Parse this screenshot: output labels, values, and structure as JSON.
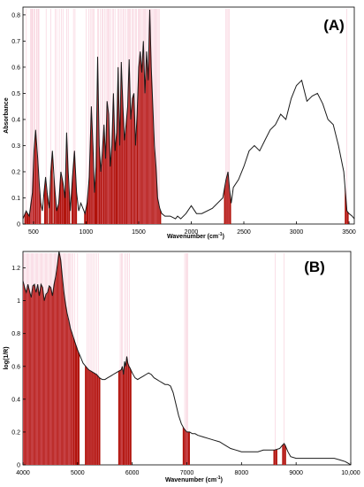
{
  "chart_data": [
    {
      "type": "line",
      "panel_label": "(A)",
      "xlabel": "Wavenumber (cm",
      "xlabel_sup": "-1",
      "xlabel_close": ")",
      "ylabel": "Absorbance",
      "xlim": [
        400,
        3550
      ],
      "ylim": [
        0,
        0.83
      ],
      "xticks": [
        500,
        1000,
        1500,
        2000,
        2500,
        3000,
        3500
      ],
      "xtick_labels": [
        "500",
        "1000",
        "1500",
        "2000",
        "2500",
        "3000",
        "3500"
      ],
      "yticks": [
        0,
        0.1,
        0.2,
        0.3,
        0.4,
        0.5,
        0.6,
        0.7,
        0.8
      ],
      "ytick_labels": [
        "0",
        "0.1",
        "0.2",
        "0.3",
        "0.4",
        "0.5",
        "0.6",
        "0.7",
        "0.8"
      ],
      "spectrum": {
        "x": [
          400,
          430,
          460,
          490,
          505,
          520,
          540,
          555,
          570,
          585,
          600,
          615,
          630,
          650,
          665,
          680,
          700,
          720,
          740,
          760,
          780,
          800,
          815,
          830,
          850,
          870,
          890,
          910,
          930,
          950,
          970,
          990,
          1010,
          1030,
          1050,
          1065,
          1080,
          1095,
          1110,
          1125,
          1140,
          1155,
          1170,
          1185,
          1200,
          1215,
          1230,
          1245,
          1260,
          1275,
          1290,
          1305,
          1320,
          1335,
          1350,
          1365,
          1380,
          1395,
          1410,
          1425,
          1440,
          1455,
          1470,
          1485,
          1500,
          1515,
          1530,
          1545,
          1560,
          1575,
          1590,
          1605,
          1620,
          1635,
          1650,
          1665,
          1680,
          1700,
          1720,
          1750,
          1800,
          1850,
          1870,
          1900,
          1950,
          2000,
          2050,
          2100,
          2200,
          2300,
          2330,
          2350,
          2365,
          2380,
          2400,
          2450,
          2500,
          2550,
          2600,
          2650,
          2700,
          2750,
          2800,
          2850,
          2900,
          2950,
          3000,
          3050,
          3100,
          3150,
          3200,
          3250,
          3300,
          3350,
          3400,
          3450,
          3480,
          3500,
          3530,
          3550
        ],
        "y": [
          0.02,
          0.05,
          0.03,
          0.12,
          0.28,
          0.36,
          0.25,
          0.15,
          0.08,
          0.05,
          0.12,
          0.18,
          0.12,
          0.06,
          0.2,
          0.28,
          0.15,
          0.05,
          0.08,
          0.2,
          0.16,
          0.1,
          0.35,
          0.2,
          0.05,
          0.18,
          0.28,
          0.12,
          0.05,
          0.08,
          0.06,
          0.04,
          0.08,
          0.18,
          0.45,
          0.3,
          0.12,
          0.22,
          0.64,
          0.3,
          0.2,
          0.28,
          0.38,
          0.25,
          0.47,
          0.42,
          0.22,
          0.3,
          0.5,
          0.28,
          0.35,
          0.6,
          0.3,
          0.62,
          0.45,
          0.32,
          0.38,
          0.45,
          0.63,
          0.4,
          0.48,
          0.5,
          0.3,
          0.42,
          0.6,
          0.66,
          0.58,
          0.7,
          0.5,
          0.66,
          0.55,
          0.82,
          0.6,
          0.45,
          0.3,
          0.22,
          0.1,
          0.06,
          0.04,
          0.03,
          0.03,
          0.02,
          0.03,
          0.02,
          0.04,
          0.07,
          0.04,
          0.04,
          0.06,
          0.1,
          0.17,
          0.2,
          0.13,
          0.08,
          0.14,
          0.17,
          0.22,
          0.28,
          0.3,
          0.28,
          0.32,
          0.36,
          0.38,
          0.42,
          0.4,
          0.48,
          0.53,
          0.55,
          0.47,
          0.49,
          0.5,
          0.46,
          0.4,
          0.38,
          0.3,
          0.2,
          0.05,
          0.04,
          0.03,
          0.02
        ]
      },
      "marker_lines": [
        432,
        470,
        478,
        487,
        492,
        505,
        515,
        528,
        535,
        545,
        552,
        620,
        665,
        708,
        720,
        745,
        765,
        780,
        815,
        830,
        880,
        895,
        1000,
        1025,
        1040,
        1055,
        1065,
        1075,
        1110,
        1118,
        1135,
        1150,
        1162,
        1175,
        1190,
        1205,
        1210,
        1222,
        1232,
        1250,
        1262,
        1275,
        1300,
        1310,
        1325,
        1340,
        1355,
        1365,
        1380,
        1395,
        1405,
        1412,
        1420,
        1435,
        1445,
        1458,
        1470,
        1480,
        1495,
        1505,
        1515,
        1525,
        1535,
        1545,
        1555,
        1565,
        1575,
        1585,
        1595,
        1605,
        1615,
        1625,
        1635,
        1645,
        1655,
        1665,
        1675,
        1685,
        1695,
        2330,
        2340,
        2350,
        2360,
        3478
      ]
    },
    {
      "type": "line",
      "panel_label": "(B)",
      "xlabel": "Wavenumber (cm",
      "xlabel_sup": "-1",
      "xlabel_close": ")",
      "ylabel": "log(1/R)",
      "xlim": [
        4000,
        10000
      ],
      "ylim": [
        0,
        1.3
      ],
      "xticks": [
        4000,
        5000,
        6000,
        7000,
        8000,
        9000,
        10000
      ],
      "xtick_labels": [
        "4000",
        "5000",
        "6000",
        "7000",
        "8000",
        "9000",
        "10,000"
      ],
      "yticks": [
        0,
        0.2,
        0.4,
        0.6,
        0.8,
        1,
        1.2
      ],
      "ytick_labels": [
        "0",
        "0.2",
        "0.4",
        "0.6",
        "0.8",
        "1",
        "1.2"
      ],
      "spectrum": {
        "x": [
          4000,
          4030,
          4060,
          4090,
          4120,
          4150,
          4180,
          4210,
          4240,
          4270,
          4300,
          4330,
          4360,
          4390,
          4420,
          4450,
          4480,
          4510,
          4540,
          4570,
          4600,
          4630,
          4660,
          4690,
          4720,
          4750,
          4780,
          4810,
          4840,
          4870,
          4900,
          4950,
          5000,
          5050,
          5100,
          5150,
          5200,
          5250,
          5300,
          5350,
          5400,
          5450,
          5500,
          5550,
          5600,
          5650,
          5700,
          5750,
          5800,
          5820,
          5840,
          5860,
          5880,
          5900,
          5920,
          5940,
          5960,
          6000,
          6050,
          6100,
          6150,
          6200,
          6250,
          6300,
          6350,
          6400,
          6450,
          6500,
          6550,
          6600,
          6650,
          6700,
          6750,
          6800,
          6850,
          6900,
          6950,
          7000,
          7050,
          7100,
          7150,
          7200,
          7300,
          7400,
          7500,
          7600,
          7700,
          7800,
          7900,
          8000,
          8100,
          8200,
          8300,
          8400,
          8500,
          8600,
          8700,
          8750,
          8780,
          8800,
          8850,
          8900,
          9000,
          9100,
          9200,
          9300,
          9400,
          9500,
          9600,
          9700,
          9800,
          9900,
          9950,
          10000
        ],
        "y": [
          1.12,
          1.08,
          1.05,
          1.1,
          1.06,
          1.02,
          1.09,
          1.1,
          1.05,
          1.1,
          1.03,
          1.1,
          1.08,
          1.0,
          1.04,
          1.05,
          1.09,
          1.08,
          1.03,
          1.1,
          1.15,
          1.22,
          1.3,
          1.25,
          1.15,
          1.05,
          0.98,
          0.92,
          0.88,
          0.83,
          0.8,
          0.75,
          0.7,
          0.66,
          0.62,
          0.6,
          0.58,
          0.57,
          0.56,
          0.55,
          0.53,
          0.52,
          0.52,
          0.53,
          0.54,
          0.55,
          0.56,
          0.57,
          0.58,
          0.6,
          0.55,
          0.63,
          0.6,
          0.66,
          0.62,
          0.6,
          0.59,
          0.56,
          0.53,
          0.52,
          0.53,
          0.54,
          0.55,
          0.56,
          0.55,
          0.53,
          0.52,
          0.51,
          0.5,
          0.49,
          0.49,
          0.48,
          0.44,
          0.37,
          0.3,
          0.25,
          0.22,
          0.2,
          0.2,
          0.19,
          0.19,
          0.18,
          0.17,
          0.16,
          0.15,
          0.14,
          0.12,
          0.1,
          0.09,
          0.08,
          0.08,
          0.08,
          0.08,
          0.09,
          0.09,
          0.09,
          0.1,
          0.12,
          0.13,
          0.12,
          0.08,
          0.05,
          0.04,
          0.04,
          0.04,
          0.04,
          0.04,
          0.04,
          0.04,
          0.04,
          0.03,
          0.02,
          0.01,
          0.0
        ]
      },
      "marker_lines": [
        4010,
        4030,
        4050,
        4070,
        4090,
        4110,
        4130,
        4150,
        4170,
        4190,
        4210,
        4230,
        4250,
        4270,
        4290,
        4310,
        4330,
        4350,
        4370,
        4390,
        4410,
        4430,
        4450,
        4470,
        4490,
        4510,
        4530,
        4550,
        4570,
        4590,
        4610,
        4630,
        4650,
        4670,
        4690,
        4710,
        4730,
        4750,
        4770,
        4790,
        4810,
        4830,
        4850,
        4870,
        4890,
        4910,
        4950,
        5000,
        5170,
        5200,
        5230,
        5260,
        5290,
        5320,
        5350,
        5380,
        5780,
        5800,
        5820,
        5860,
        5890,
        5920,
        5950,
        6960,
        6980,
        7000,
        7020,
        8620,
        8780
      ]
    }
  ]
}
